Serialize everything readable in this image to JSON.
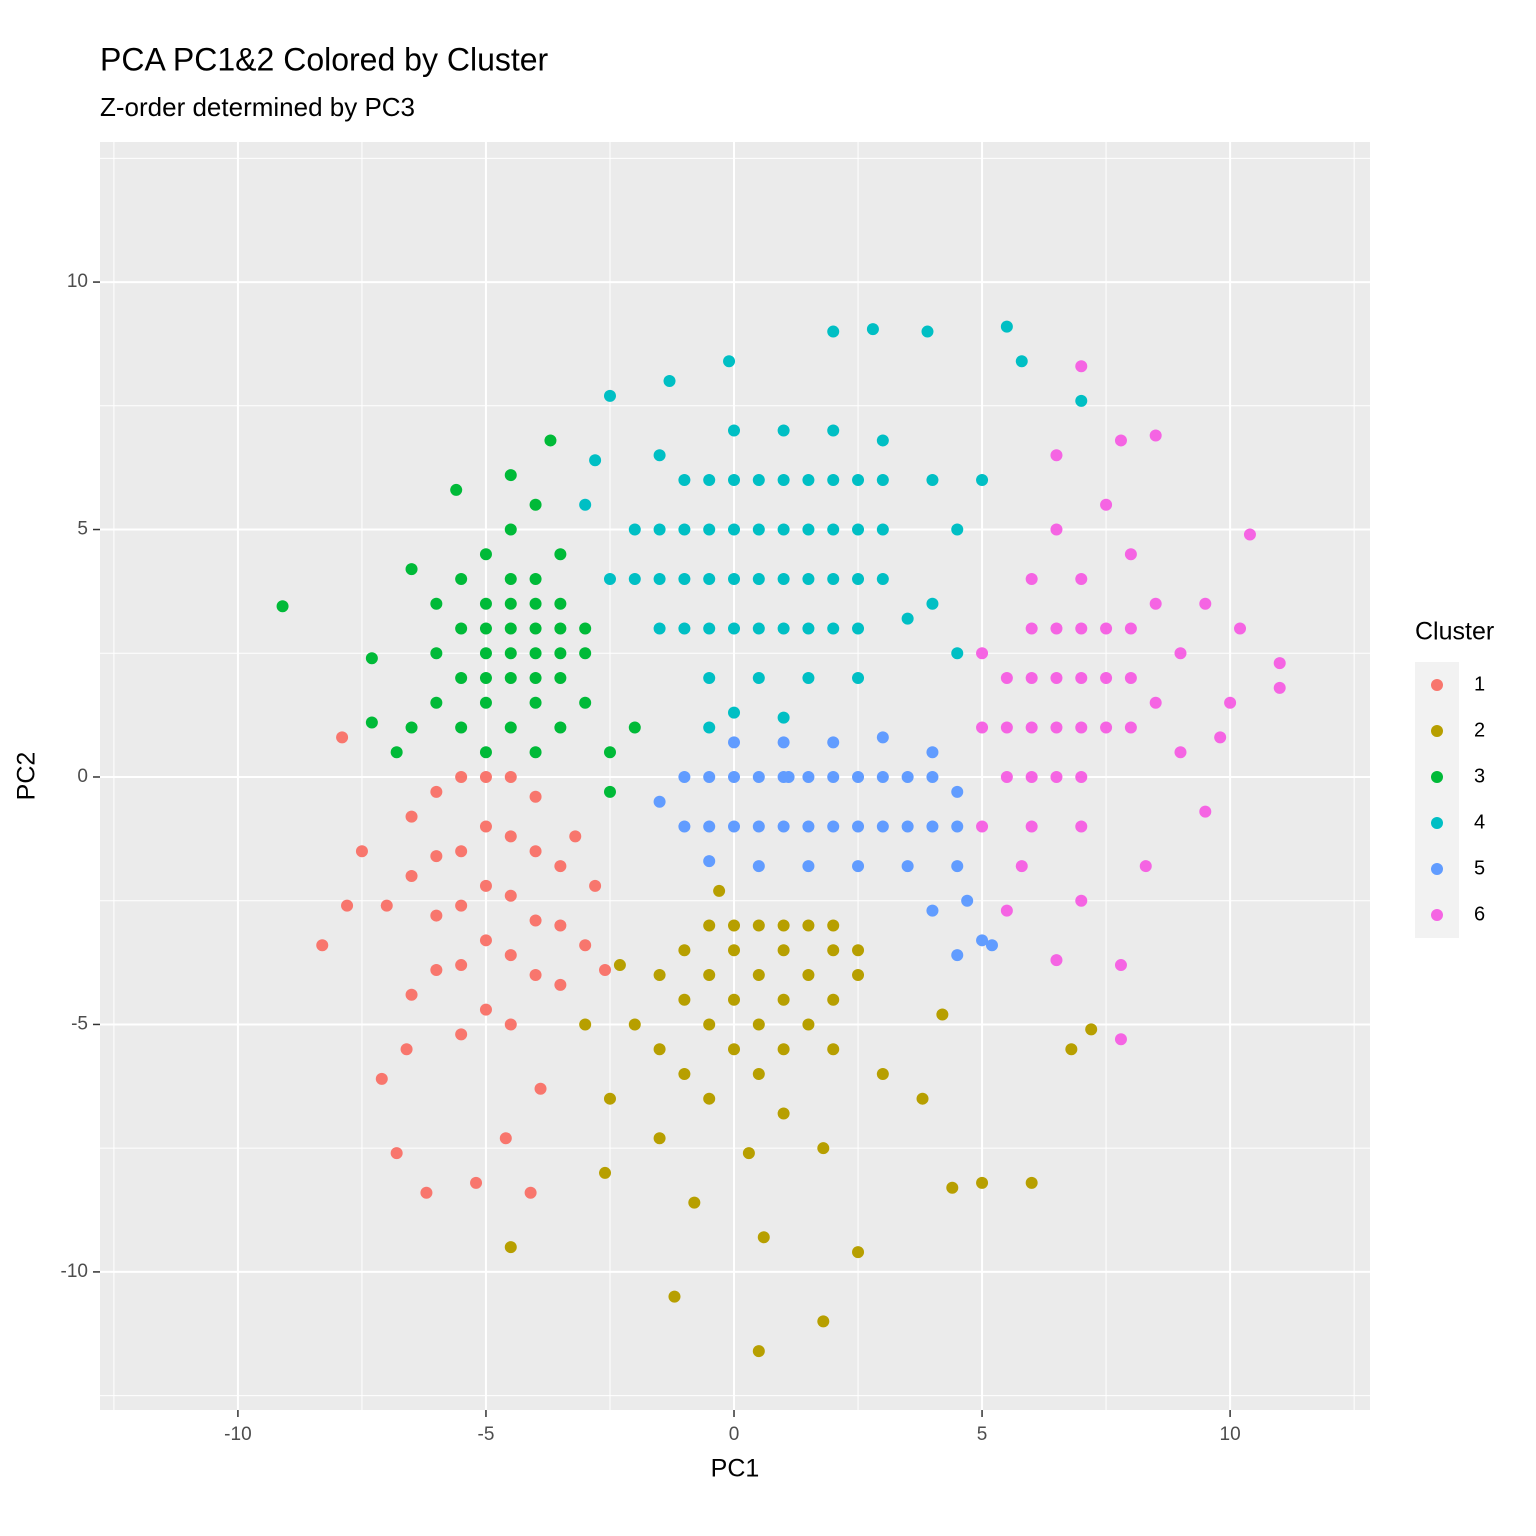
{
  "chart_data": {
    "type": "scatter",
    "title": "PCA PC1&2 Colored by Cluster",
    "subtitle": "Z-order determined by PC3",
    "x_label": "PC1",
    "y_label": "PC2",
    "legend_title": "Cluster",
    "legend_position": "right",
    "grid": true,
    "xlim": [
      -12.78,
      12.82
    ],
    "ylim": [
      -12.79,
      12.83
    ],
    "xticks": [
      -10,
      -5,
      0,
      5,
      10
    ],
    "yticks": [
      -10,
      -5,
      0,
      5,
      10
    ],
    "x_minor_grid": [
      -12.5,
      -7.5,
      -2.5,
      2.5,
      7.5,
      12.5
    ],
    "y_minor_grid": [
      -12.5,
      -7.5,
      -2.5,
      2.5,
      7.5,
      12.5
    ],
    "series": [
      {
        "name": "1",
        "color": "#F8766D",
        "x": [
          -5,
          -4.5,
          -5.5,
          -6,
          -4,
          -6.5,
          -5,
          -4.5,
          -5.5,
          -6,
          -4,
          -3.5,
          -6.5,
          -5,
          -4.5,
          -5.5,
          -6,
          -4,
          -3.5,
          -7,
          -5,
          -4.5,
          -5.5,
          -6,
          -4,
          -3.5,
          -6.5,
          -5,
          -4.5,
          -5.5,
          -3,
          -2.8,
          -7.5,
          -7.8,
          -8.3,
          -7.9,
          -6.8,
          -6.2,
          -4.6,
          -5.2,
          -4.1,
          -3.9,
          -6.6,
          -7.1,
          -3.2,
          -2.6
        ],
        "values": [
          0,
          0,
          0,
          -0.3,
          -0.4,
          -0.8,
          -1,
          -1.2,
          -1.5,
          -1.6,
          -1.5,
          -1.8,
          -2,
          -2.2,
          -2.4,
          -2.6,
          -2.8,
          -2.9,
          -3,
          -2.6,
          -3.3,
          -3.6,
          -3.8,
          -3.9,
          -4,
          -4.2,
          -4.4,
          -4.7,
          -5,
          -5.2,
          -3.4,
          -2.2,
          -1.5,
          -2.6,
          -3.4,
          0.8,
          -7.6,
          -8.4,
          -7.3,
          -8.2,
          -8.4,
          -6.3,
          -5.5,
          -6.1,
          -1.2,
          -3.9
        ]
      },
      {
        "name": "2",
        "color": "#B79F00",
        "x": [
          0,
          0.5,
          1,
          -0.5,
          1.5,
          2,
          -1,
          0,
          1,
          2,
          2.5,
          -1.5,
          -0.5,
          0.5,
          1.5,
          2.5,
          -1,
          0,
          1,
          2,
          -2,
          -0.5,
          0.5,
          1.5,
          -1.5,
          0,
          1,
          2,
          -1,
          0.5,
          -2.5,
          -0.5,
          1,
          -1.5,
          0.3,
          1.8,
          -2.6,
          -0.8,
          0.6,
          -1.2,
          0.5,
          1.8,
          2.5,
          -4.5,
          4.4,
          5,
          6,
          6.8,
          7.2,
          3.8,
          4.2,
          -3,
          -2.3,
          3,
          -0.3
        ],
        "values": [
          -3,
          -3,
          -3,
          -3,
          -3,
          -3,
          -3.5,
          -3.5,
          -3.5,
          -3.5,
          -3.5,
          -4,
          -4,
          -4,
          -4,
          -4,
          -4.5,
          -4.5,
          -4.5,
          -4.5,
          -5,
          -5,
          -5,
          -5,
          -5.5,
          -5.5,
          -5.5,
          -5.5,
          -6,
          -6,
          -6.5,
          -6.5,
          -6.8,
          -7.3,
          -7.6,
          -7.5,
          -8,
          -8.6,
          -9.3,
          -10.5,
          -11.6,
          -11,
          -9.6,
          -9.5,
          -8.3,
          -8.2,
          -8.2,
          -5.5,
          -5.1,
          -6.5,
          -4.8,
          -5,
          -3.8,
          -6,
          -2.3
        ]
      },
      {
        "name": "3",
        "color": "#00BA38",
        "x": [
          -5,
          -4.5,
          -4,
          -3.5,
          -5.5,
          -6,
          -5,
          -4.5,
          -4,
          -3.5,
          -3,
          -5.5,
          -5,
          -4.5,
          -4,
          -3.5,
          -3,
          -6,
          -5,
          -4.5,
          -4,
          -3.5,
          -5.5,
          -4.5,
          -4,
          -3.5,
          -5,
          -4.5,
          -4,
          -6,
          -5,
          -4,
          -3,
          -6.5,
          -5.5,
          -4.5,
          -3.5,
          -5,
          -4,
          -2.5,
          -9.1,
          -7.3,
          -6.5,
          -5.6,
          -3.7,
          -4.5,
          -2,
          -2.5,
          -6.8,
          -7.3
        ],
        "values": [
          2,
          2,
          2,
          2,
          2,
          2.5,
          2.5,
          2.5,
          2.5,
          2.5,
          2.5,
          3,
          3,
          3,
          3,
          3,
          3,
          3.5,
          3.5,
          3.5,
          3.5,
          3.5,
          4,
          4,
          4,
          4.5,
          4.5,
          5,
          5.5,
          1.5,
          1.5,
          1.5,
          1.5,
          1,
          1,
          1,
          1,
          0.5,
          0.5,
          0.5,
          3.45,
          2.4,
          4.2,
          5.8,
          6.8,
          6.1,
          1,
          -0.3,
          0.5,
          1.1
        ]
      },
      {
        "name": "4",
        "color": "#00BFC4",
        "x": [
          -2.5,
          -2,
          -1.5,
          -1,
          -0.5,
          0,
          0.5,
          1,
          1.5,
          2,
          2.5,
          3,
          -2,
          -1.5,
          -1,
          -0.5,
          0,
          0.5,
          1,
          1.5,
          2,
          2.5,
          3,
          -1.5,
          -1,
          -0.5,
          0,
          0.5,
          1,
          1.5,
          2,
          2.5,
          -1,
          -0.5,
          0,
          0.5,
          1,
          1.5,
          2,
          2.5,
          3,
          -0.5,
          0.5,
          1.5,
          2.5,
          0,
          1,
          -1.5,
          -2.8,
          -3,
          0,
          1,
          2,
          3,
          4,
          4.5,
          3.5,
          -0.1,
          2.8,
          2,
          5.5,
          3.9,
          5.8,
          7,
          -2.5,
          -1.3,
          4.5,
          -0.5,
          4,
          5
        ],
        "values": [
          4,
          4,
          4,
          4,
          4,
          4,
          4,
          4,
          4,
          4,
          4,
          4,
          5,
          5,
          5,
          5,
          5,
          5,
          5,
          5,
          5,
          5,
          5,
          3,
          3,
          3,
          3,
          3,
          3,
          3,
          3,
          3,
          6,
          6,
          6,
          6,
          6,
          6,
          6,
          6,
          6,
          2,
          2,
          2,
          2,
          1.3,
          1.2,
          6.5,
          6.4,
          5.5,
          7,
          7,
          7,
          6.8,
          6,
          5,
          3.2,
          8.4,
          9.05,
          9,
          9.1,
          9,
          8.4,
          7.6,
          7.7,
          8,
          2.5,
          1,
          3.5,
          6
        ]
      },
      {
        "name": "5",
        "color": "#619CFF",
        "x": [
          -1,
          -0.5,
          0,
          0.5,
          1,
          1.5,
          2,
          2.5,
          3,
          3.5,
          4,
          -1,
          -0.5,
          0,
          0.5,
          1,
          1.5,
          2,
          2.5,
          3,
          3.5,
          4,
          4.5,
          -0.5,
          0.5,
          1.5,
          2.5,
          3.5,
          4.5,
          0,
          1,
          2,
          3,
          4,
          -1.5,
          4.5,
          4.7,
          4,
          5,
          4.5,
          5.2,
          1.1
        ],
        "values": [
          0,
          0,
          0,
          0,
          0,
          0,
          0,
          0,
          0,
          0,
          0,
          -1,
          -1,
          -1,
          -1,
          -1,
          -1,
          -1,
          -1,
          -1,
          -1,
          -1,
          -1,
          -1.7,
          -1.8,
          -1.8,
          -1.8,
          -1.8,
          -1.8,
          0.7,
          0.7,
          0.7,
          0.8,
          0.5,
          -0.5,
          -0.3,
          -2.5,
          -2.7,
          -3.3,
          -3.6,
          -3.4,
          0
        ]
      },
      {
        "name": "6",
        "color": "#F564E3",
        "x": [
          5,
          5.5,
          6,
          6.5,
          7,
          7.5,
          8,
          5.5,
          6,
          6.5,
          7,
          7.5,
          8,
          5,
          6,
          6.5,
          7,
          7.5,
          8,
          5.5,
          6,
          6.5,
          7,
          5,
          6,
          7,
          8.5,
          9,
          9,
          8.5,
          6,
          7,
          8,
          6.5,
          7.5,
          9.5,
          10.2,
          11,
          11,
          10.4,
          8.5,
          7.8,
          7,
          9.5,
          8.3,
          7.8,
          7.8,
          6.5,
          5.5,
          7,
          5.8,
          9.8,
          6.5,
          10
        ],
        "values": [
          1,
          1,
          1,
          1,
          1,
          1,
          1,
          2,
          2,
          2,
          2,
          2,
          2,
          2.5,
          3,
          3,
          3,
          3,
          3,
          0,
          0,
          0,
          0,
          -1,
          -1,
          -1,
          1.5,
          2.5,
          0.5,
          3.5,
          4,
          4,
          4.5,
          5,
          5.5,
          3.5,
          3,
          2.3,
          1.8,
          4.9,
          6.9,
          6.8,
          8.3,
          -0.7,
          -1.8,
          -3.8,
          -5.3,
          -3.7,
          -2.7,
          -2.5,
          -1.8,
          0.8,
          6.5,
          1.5
        ]
      }
    ]
  }
}
